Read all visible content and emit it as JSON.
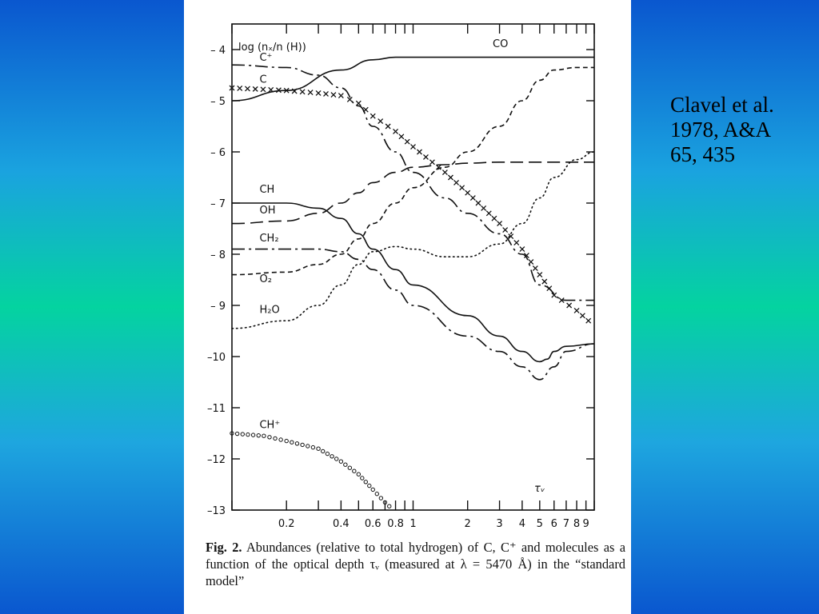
{
  "citation": {
    "line1": "Clavel et al.",
    "line2": "1978, A&A",
    "line3": "65, 435"
  },
  "caption": {
    "label": "Fig. 2.",
    "text": "Abundances (relative to total hydrogen) of C, C⁺ and molecules as a function of the optical depth τᵥ (measured at λ = 5470 Å) in the “standard model”"
  },
  "chart_data": {
    "type": "line",
    "ylabel": "log (nₓ/n (H))",
    "xlabel": "τᵥ",
    "x_scale": "log",
    "xlim": [
      0.1,
      10
    ],
    "ylim": [
      -13,
      -3.5
    ],
    "x_ticks": [
      0.2,
      0.4,
      0.6,
      0.8,
      1,
      2,
      3,
      4,
      5,
      6,
      7,
      8,
      9
    ],
    "x_tick_labels": [
      "0.2",
      "0.4",
      "0.6",
      "0.8",
      "1",
      "2",
      "3",
      "4",
      "5",
      "6",
      "7",
      "8",
      "9"
    ],
    "y_ticks": [
      -4,
      -5,
      -6,
      -7,
      -8,
      -9,
      -10,
      -11,
      -12,
      -13
    ],
    "y_tick_labels": [
      "– 4",
      "– 5",
      "– 6",
      "– 7",
      "– 8",
      "– 9",
      "–10",
      "–11",
      "–12",
      "–13"
    ],
    "series": [
      {
        "name": "CO",
        "style": "solid",
        "x": [
          0.1,
          0.2,
          0.4,
          0.6,
          0.8,
          1,
          2,
          4,
          10
        ],
        "y": [
          -5.0,
          -4.8,
          -4.4,
          -4.2,
          -4.15,
          -4.15,
          -4.15,
          -4.15,
          -4.15
        ]
      },
      {
        "name": "C⁺",
        "style": "dash-dot",
        "x": [
          0.1,
          0.2,
          0.3,
          0.4,
          0.5,
          0.6,
          0.8,
          1,
          1.5,
          2,
          3,
          4,
          5,
          7,
          10
        ],
        "y": [
          -4.3,
          -4.35,
          -4.5,
          -4.75,
          -5.1,
          -5.5,
          -6.0,
          -6.4,
          -6.9,
          -7.2,
          -7.6,
          -8.0,
          -8.6,
          -8.9,
          -8.9
        ]
      },
      {
        "name": "C",
        "style": "crosses",
        "x": [
          0.1,
          0.2,
          0.3,
          0.4,
          0.5,
          0.6,
          0.8,
          1,
          1.5,
          2,
          3,
          4,
          5,
          6,
          8,
          10
        ],
        "y": [
          -4.75,
          -4.8,
          -4.85,
          -4.9,
          -5.05,
          -5.3,
          -5.6,
          -5.9,
          -6.4,
          -6.8,
          -7.4,
          -7.9,
          -8.4,
          -8.8,
          -9.1,
          -9.4
        ]
      },
      {
        "name": "CH",
        "style": "solid",
        "x": [
          0.1,
          0.2,
          0.3,
          0.4,
          0.5,
          0.6,
          0.8,
          1,
          2,
          3,
          4,
          5,
          5.5,
          6,
          7,
          10
        ],
        "y": [
          -7.0,
          -7.0,
          -7.1,
          -7.3,
          -7.6,
          -7.9,
          -8.3,
          -8.6,
          -9.2,
          -9.6,
          -9.9,
          -10.1,
          -10.05,
          -9.9,
          -9.8,
          -9.75
        ]
      },
      {
        "name": "OH",
        "style": "long-dash",
        "x": [
          0.1,
          0.2,
          0.3,
          0.4,
          0.5,
          0.6,
          0.8,
          1,
          1.5,
          2,
          3,
          5,
          10
        ],
        "y": [
          -7.4,
          -7.35,
          -7.2,
          -7.0,
          -6.8,
          -6.6,
          -6.4,
          -6.3,
          -6.25,
          -6.22,
          -6.2,
          -6.2,
          -6.2
        ]
      },
      {
        "name": "CH₂",
        "style": "dash-dot",
        "x": [
          0.1,
          0.2,
          0.3,
          0.4,
          0.5,
          0.6,
          0.8,
          1,
          2,
          3,
          4,
          5,
          6,
          7,
          10
        ],
        "y": [
          -7.9,
          -7.9,
          -7.9,
          -7.95,
          -8.1,
          -8.3,
          -8.7,
          -9.0,
          -9.6,
          -9.9,
          -10.2,
          -10.45,
          -10.2,
          -9.9,
          -9.75
        ]
      },
      {
        "name": "O₂",
        "style": "short-dash",
        "x": [
          0.1,
          0.2,
          0.3,
          0.4,
          0.5,
          0.6,
          0.8,
          1,
          1.5,
          2,
          3,
          4,
          5,
          6,
          8,
          10
        ],
        "y": [
          -8.4,
          -8.35,
          -8.2,
          -8.0,
          -7.7,
          -7.4,
          -7.0,
          -6.7,
          -6.3,
          -6.0,
          -5.5,
          -5.0,
          -4.6,
          -4.4,
          -4.35,
          -4.35
        ]
      },
      {
        "name": "H₂O",
        "style": "dotted",
        "x": [
          0.1,
          0.2,
          0.3,
          0.4,
          0.5,
          0.6,
          0.8,
          1,
          1.5,
          2,
          3,
          4,
          5,
          6,
          8,
          10
        ],
        "y": [
          -9.45,
          -9.3,
          -9.0,
          -8.6,
          -8.2,
          -7.95,
          -7.85,
          -7.9,
          -8.05,
          -8.05,
          -7.8,
          -7.4,
          -6.9,
          -6.5,
          -6.15,
          -6.0
        ]
      },
      {
        "name": "CH⁺",
        "style": "circles",
        "x": [
          0.1,
          0.15,
          0.2,
          0.3,
          0.4,
          0.5,
          0.6,
          0.7,
          0.78
        ],
        "y": [
          -11.5,
          -11.55,
          -11.65,
          -11.8,
          -12.05,
          -12.3,
          -12.6,
          -12.85,
          -13.0
        ]
      }
    ],
    "series_labels": {
      "CO": "CO",
      "C⁺": "C⁺",
      "C": "C",
      "CH": "CH",
      "OH": "OH",
      "CH₂": "CH₂",
      "O₂": "O₂",
      "H₂O": "H₂O",
      "CH⁺": "CH⁺"
    },
    "grid": false,
    "legend": "inline labels"
  }
}
